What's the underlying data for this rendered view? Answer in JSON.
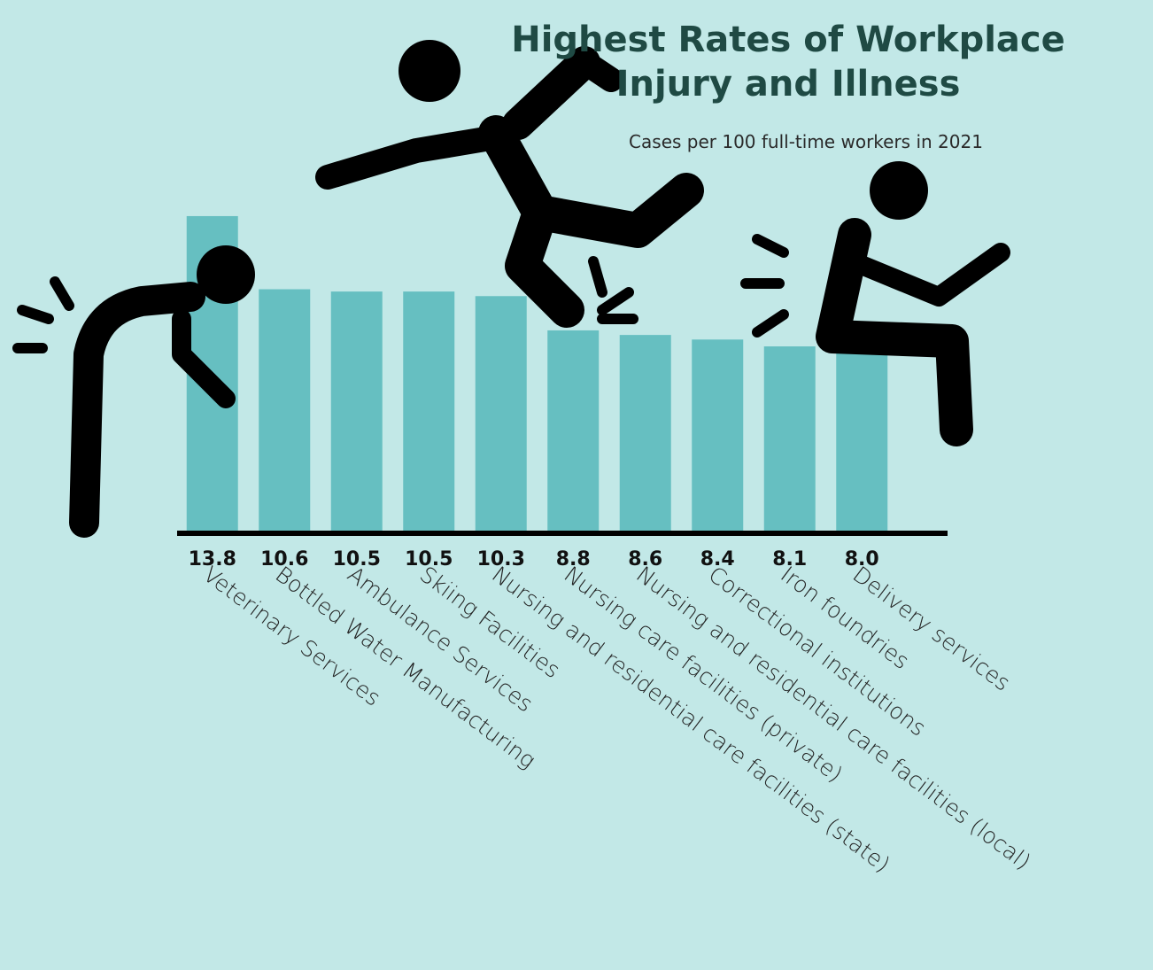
{
  "chart_data": {
    "type": "bar",
    "title": "Highest Rates of Workplace Injury and Illness",
    "subtitle": "Cases per 100 full-time workers in 2021",
    "categories": [
      "Veterinary Services",
      "Bottled Water Manufacturing",
      "Ambulance Services",
      "Skiing Facilities",
      "Nursing and residential care facilities (state)",
      "Nursing care facilities (private)",
      "Nursing and residential care facilities (local)",
      "Correctional institutions",
      "Iron foundries",
      "Delivery services"
    ],
    "values": [
      13.8,
      10.6,
      10.5,
      10.5,
      10.3,
      8.8,
      8.6,
      8.4,
      8.1,
      8.0
    ],
    "value_labels": [
      "13.8",
      "10.6",
      "10.5",
      "10.5",
      "10.3",
      "8.8",
      "8.6",
      "8.4",
      "8.1",
      "8.0"
    ],
    "color": "#66bfc1",
    "ylim": [
      0,
      15
    ]
  }
}
